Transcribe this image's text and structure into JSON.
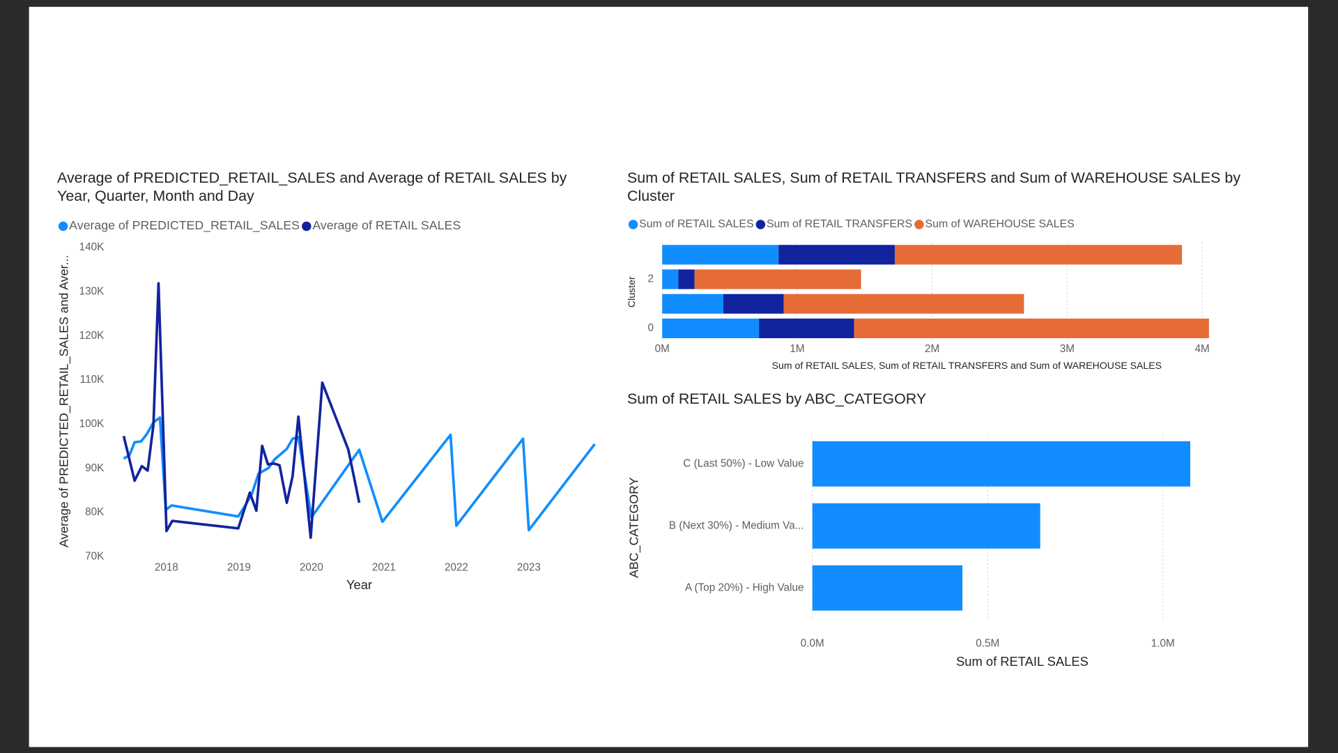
{
  "chart_data": [
    {
      "type": "line",
      "title": "Average of PREDICTED_RETAIL_SALES and Average of RETAIL SALES by Year, Quarter, Month and Day",
      "x_label": "Year",
      "y_label": "Average of PREDICTED_RETAIL_SALES and Aver...",
      "legend": "top-left",
      "grid": false,
      "xlim": [
        2017.41,
        2023.91
      ],
      "xticks": [
        2018,
        2019,
        2020,
        2021,
        2022,
        2023
      ],
      "ylim": [
        70000,
        140000
      ],
      "yticks": [
        {
          "value": 70000,
          "label": "70K"
        },
        {
          "value": 80000,
          "label": "80K"
        },
        {
          "value": 90000,
          "label": "90K"
        },
        {
          "value": 100000,
          "label": "100K"
        },
        {
          "value": 110000,
          "label": "110K"
        },
        {
          "value": 120000,
          "label": "120K"
        },
        {
          "value": 130000,
          "label": "130K"
        },
        {
          "value": 140000,
          "label": "140K"
        }
      ],
      "series": [
        {
          "name": "Average of PREDICTED_RETAIL_SALES",
          "color": "#118DFF",
          "x": [
            2017.41,
            2017.49,
            2017.56,
            2017.65,
            2017.73,
            2017.82,
            2017.91,
            2017.99,
            2018.07,
            2018.99,
            2019.08,
            2019.18,
            2019.27,
            2019.41,
            2019.49,
            2019.66,
            2019.74,
            2019.82,
            2020.0,
            2020.66,
            2020.98,
            2021.92,
            2022.0,
            2022.92,
            2023.0,
            2023.91
          ],
          "values": [
            92200,
            93000,
            95900,
            96100,
            97800,
            100400,
            101500,
            80600,
            81600,
            79100,
            81400,
            84300,
            88800,
            90100,
            92000,
            94400,
            96700,
            97100,
            78900,
            94200,
            77900,
            97600,
            77000,
            96700,
            76000,
            95500
          ]
        },
        {
          "name": "Average of RETAIL SALES",
          "color": "#12239E",
          "x": [
            2017.41,
            2017.56,
            2017.66,
            2017.74,
            2017.82,
            2017.89,
            2018.0,
            2018.08,
            2018.99,
            2019.15,
            2019.24,
            2019.32,
            2019.4,
            2019.48,
            2019.56,
            2019.66,
            2019.74,
            2019.82,
            2019.99,
            2020.15,
            2020.51,
            2020.66
          ],
          "values": [
            97300,
            87200,
            90500,
            89500,
            99800,
            131900,
            75800,
            78100,
            76400,
            84500,
            80400,
            95100,
            90900,
            91100,
            90700,
            82200,
            88200,
            101700,
            74300,
            109400,
            94200,
            82200
          ]
        }
      ]
    },
    {
      "type": "bar",
      "orientation": "horizontal",
      "stacked": true,
      "title": "Sum of RETAIL SALES, Sum of RETAIL TRANSFERS and Sum of WAREHOUSE SALES by Cluster",
      "x_label": "Sum of RETAIL SALES, Sum of RETAIL TRANSFERS and Sum of WAREHOUSE SALES",
      "y_label": "Cluster",
      "legend": "top-left",
      "grid": true,
      "categories": [
        null,
        "2",
        null,
        "0"
      ],
      "xlim": [
        0,
        4500000
      ],
      "xticks": [
        {
          "value": 0,
          "label": "0M"
        },
        {
          "value": 1000000,
          "label": "1M"
        },
        {
          "value": 2000000,
          "label": "2M"
        },
        {
          "value": 3000000,
          "label": "3M"
        },
        {
          "value": 4000000,
          "label": "4M"
        }
      ],
      "series": [
        {
          "name": "Sum of RETAIL SALES",
          "color": "#118DFF",
          "values": [
            862000,
            120000,
            453000,
            717000
          ]
        },
        {
          "name": "Sum of RETAIL TRANSFERS",
          "color": "#12239E",
          "values": [
            862000,
            120000,
            447000,
            704000
          ]
        },
        {
          "name": "Sum of WAREHOUSE SALES",
          "color": "#E66C37",
          "values": [
            2126000,
            1233000,
            1780000,
            2629000
          ]
        }
      ]
    },
    {
      "type": "bar",
      "orientation": "horizontal",
      "title": "Sum of RETAIL SALES by ABC_CATEGORY",
      "x_label": "Sum of RETAIL SALES",
      "y_label": "ABC_CATEGORY",
      "grid": true,
      "color": "#118DFF",
      "categories": [
        "C (Last 50%) - Low Value",
        "B (Next 30%) - Medium Va...",
        "A (Top 20%) - High Value"
      ],
      "values": [
        1078000,
        650000,
        428000
      ],
      "xlim": [
        0,
        1200000
      ],
      "xticks": [
        {
          "value": 0,
          "label": "0.0M"
        },
        {
          "value": 500000,
          "label": "0.5M"
        },
        {
          "value": 1000000,
          "label": "1.0M"
        }
      ]
    }
  ]
}
